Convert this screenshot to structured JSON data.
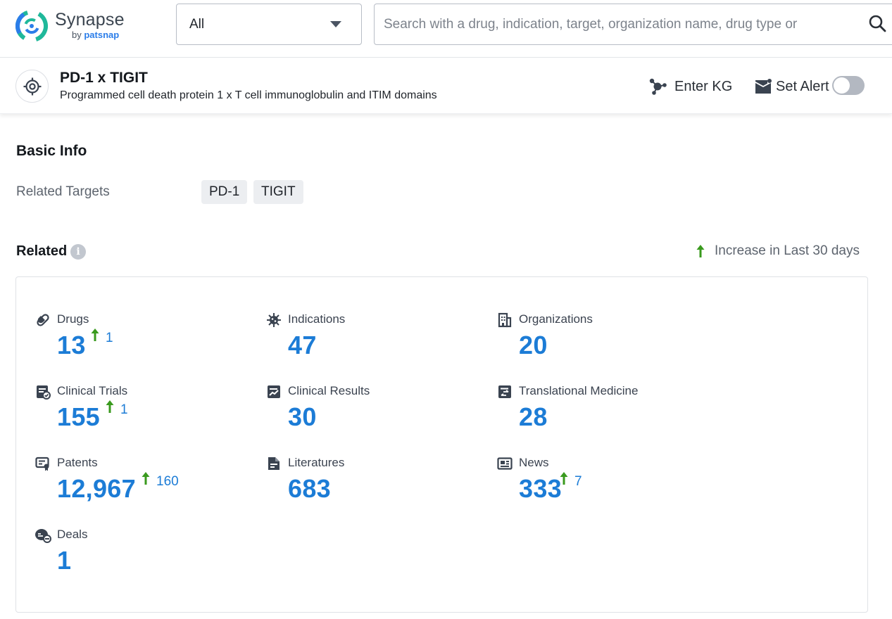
{
  "app": {
    "brand_name": "Synapse",
    "brand_by": "by",
    "brand_company": "patsnap"
  },
  "search": {
    "scope_value": "All",
    "placeholder": "Search with a drug, indication, target, organization name, drug type or"
  },
  "entity": {
    "title": "PD-1 x TIGIT",
    "subtitle": "Programmed cell death protein 1 x T cell immunoglobulin and ITIM domains",
    "enter_kg_label": "Enter KG",
    "set_alert_label": "Set Alert",
    "alert_enabled": false
  },
  "basic_info": {
    "title": "Basic Info",
    "related_targets_label": "Related Targets",
    "targets": [
      "PD-1",
      "TIGIT"
    ]
  },
  "related": {
    "title": "Related",
    "legend_label": "Increase in Last 30 days",
    "accent_color": "#1c7cd6",
    "increase_color": "#3a9a1e",
    "stats": [
      {
        "label": "Drugs",
        "value": "13",
        "increase": "1",
        "icon": "pill-icon"
      },
      {
        "label": "Indications",
        "value": "47",
        "increase": "",
        "icon": "virus-icon"
      },
      {
        "label": "Organizations",
        "value": "20",
        "increase": "",
        "icon": "building-icon"
      },
      {
        "label": "Clinical Trials",
        "value": "155",
        "increase": "1",
        "icon": "clipboard-icon"
      },
      {
        "label": "Clinical Results",
        "value": "30",
        "increase": "",
        "icon": "chart-doc-icon"
      },
      {
        "label": "Translational Medicine",
        "value": "28",
        "increase": "",
        "icon": "transfer-doc-icon"
      },
      {
        "label": "Patents",
        "value": "12,967",
        "increase": "160",
        "icon": "certificate-icon"
      },
      {
        "label": "Literatures",
        "value": "683",
        "increase": "",
        "icon": "document-icon"
      },
      {
        "label": "News",
        "value": "333",
        "increase": "7",
        "icon": "newspaper-icon"
      },
      {
        "label": "Deals",
        "value": "1",
        "increase": "",
        "icon": "handshake-icon"
      }
    ]
  }
}
